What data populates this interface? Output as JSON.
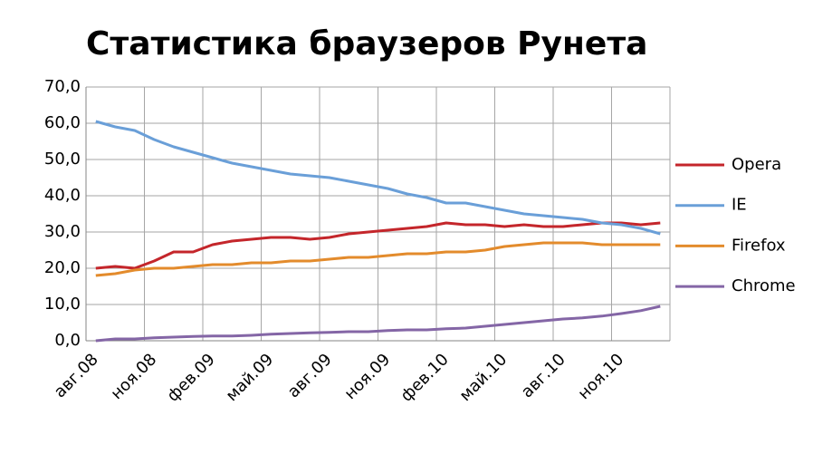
{
  "chart_data": {
    "type": "line",
    "title": "Статистика браузеров Рунета",
    "categories": [
      "авг.08",
      null,
      null,
      "ноя.08",
      null,
      null,
      "фев.09",
      null,
      null,
      "май.09",
      null,
      null,
      "авг.09",
      null,
      null,
      "ноя.09",
      null,
      null,
      "фев.10",
      null,
      null,
      "май.10",
      null,
      null,
      "авг.10",
      null,
      null,
      "ноя.10",
      null,
      null
    ],
    "series": [
      {
        "name": "Opera",
        "color": "#c4262b",
        "values": [
          20,
          20.5,
          20,
          22,
          24.5,
          24.5,
          26.5,
          27.5,
          28,
          28.5,
          28.5,
          28,
          28.5,
          29.5,
          30,
          30.5,
          31,
          31.5,
          32.5,
          32,
          32,
          31.5,
          32,
          31.5,
          31.5,
          32,
          32.5,
          32.5,
          32,
          32.5
        ]
      },
      {
        "name": "IE",
        "color": "#6a9fd8",
        "values": [
          60.5,
          59,
          58,
          55.5,
          53.5,
          52,
          50.5,
          49,
          48,
          47,
          46,
          45.5,
          45,
          44,
          43,
          42,
          40.5,
          39.5,
          38,
          38,
          37,
          36,
          35,
          34.5,
          34,
          33.5,
          32.5,
          32,
          31,
          29.5
        ]
      },
      {
        "name": "Firefox",
        "color": "#e38b2c",
        "values": [
          18,
          18.5,
          19.5,
          20,
          20,
          20.5,
          21,
          21,
          21.5,
          21.5,
          22,
          22,
          22.5,
          23,
          23,
          23.5,
          24,
          24,
          24.5,
          24.5,
          25,
          26,
          26.5,
          27,
          27,
          27,
          26.5,
          26.5,
          26.5,
          26.5
        ]
      },
      {
        "name": "Chrome",
        "color": "#8466a6",
        "values": [
          0,
          0.5,
          0.5,
          0.8,
          1,
          1.2,
          1.3,
          1.3,
          1.5,
          1.8,
          2,
          2.2,
          2.3,
          2.5,
          2.5,
          2.8,
          3,
          3,
          3.3,
          3.5,
          4,
          4.5,
          5,
          5.5,
          6,
          6.3,
          6.8,
          7.5,
          8.3,
          9.5
        ]
      }
    ],
    "ylim": [
      0,
      70
    ],
    "yticks": [
      {
        "value": 0,
        "label": "0,0"
      },
      {
        "value": 10,
        "label": "10,0"
      },
      {
        "value": 20,
        "label": "20,0"
      },
      {
        "value": 30,
        "label": "30,0"
      },
      {
        "value": 40,
        "label": "40,0"
      },
      {
        "value": 50,
        "label": "50,0"
      },
      {
        "value": 60,
        "label": "60,0"
      },
      {
        "value": 70,
        "label": "70,0"
      }
    ],
    "grid": true,
    "legend": "right"
  }
}
